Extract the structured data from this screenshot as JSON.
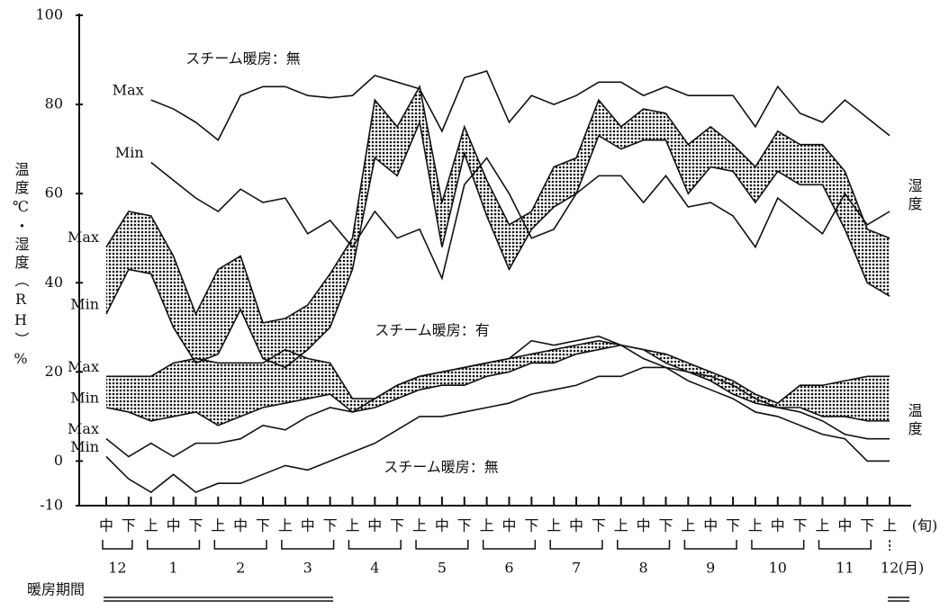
{
  "chart_data": {
    "type": "line",
    "y_label": "温度℃・湿度（RH）%",
    "ylim": [
      -10,
      100
    ],
    "yticks": [
      -10,
      0,
      20,
      40,
      60,
      80,
      100
    ],
    "categories": [
      "中",
      "下",
      "上",
      "中",
      "下",
      "上",
      "中",
      "下",
      "上",
      "中",
      "下",
      "上",
      "中",
      "下",
      "上",
      "中",
      "下",
      "上",
      "中",
      "下",
      "上",
      "中",
      "下",
      "上",
      "中",
      "下",
      "上",
      "中",
      "下",
      "上",
      "中",
      "下",
      "上",
      "中",
      "下",
      "上"
    ],
    "period_unit": "(旬)",
    "months": [
      "12",
      "1",
      "2",
      "3",
      "4",
      "5",
      "6",
      "7",
      "8",
      "9",
      "10",
      "11",
      "12"
    ],
    "month_unit": "(月)",
    "heating_label": "暖房期間",
    "annotations": [
      "スチーム暖房：無",
      "スチーム暖房：有",
      "スチーム暖房：無",
      "湿度",
      "温度"
    ],
    "color": "#111111",
    "series": [
      {
        "name": "Max",
        "fill": "none",
        "values": [
          null,
          null,
          81,
          79,
          76,
          72,
          82,
          84,
          84,
          82,
          81.5,
          82,
          86.5,
          85,
          83.5,
          74,
          86,
          87.5,
          76,
          82,
          80,
          82,
          85,
          85,
          82,
          84,
          82,
          82,
          82,
          75,
          84,
          78,
          76,
          81,
          77,
          73
        ]
      },
      {
        "name": "Min",
        "fill": "none",
        "values": [
          null,
          null,
          67,
          63,
          59,
          56,
          61,
          58,
          59,
          51,
          54,
          48,
          56,
          50,
          52,
          41,
          62,
          68,
          60,
          50,
          52,
          60,
          64,
          64,
          58,
          64,
          57,
          58,
          55,
          48,
          59,
          55,
          51,
          60,
          53,
          56
        ]
      },
      {
        "name": "Max",
        "fill": "dots",
        "values": [
          48,
          56,
          55,
          46,
          33,
          43,
          46,
          31,
          32,
          35,
          42,
          50,
          81,
          75,
          84,
          58,
          75,
          63,
          53,
          56,
          66,
          68,
          81,
          75,
          79,
          78,
          71,
          75,
          71,
          66,
          74,
          71,
          71,
          65,
          52,
          50
        ]
      },
      {
        "name": "Min",
        "fill": "dots",
        "values": [
          33,
          43,
          42,
          30,
          22,
          24,
          34,
          23,
          21,
          25,
          30,
          43,
          68,
          64,
          76,
          48,
          69,
          55,
          43,
          52,
          57,
          60,
          73,
          70,
          72,
          72,
          60,
          66,
          65,
          58,
          65,
          62,
          62,
          52,
          40,
          37
        ]
      },
      {
        "name": "Max",
        "fill": "dots",
        "values": [
          19,
          19,
          19,
          22,
          23,
          22,
          22,
          22,
          25,
          23,
          22,
          14,
          14,
          17,
          19,
          20,
          21,
          22,
          23,
          24,
          25,
          26,
          27,
          26,
          25,
          24,
          22,
          20,
          18,
          15,
          13,
          17,
          17,
          18,
          19,
          19
        ]
      },
      {
        "name": "Min",
        "fill": "dots",
        "values": [
          12,
          11,
          9,
          10,
          11,
          8,
          10,
          12,
          13,
          14,
          15,
          11,
          12,
          14,
          16,
          17,
          17,
          19,
          20,
          22,
          22,
          24,
          25,
          26,
          25,
          22,
          20,
          18,
          15,
          13,
          12,
          12,
          10,
          10,
          9,
          9
        ]
      },
      {
        "name": "Max",
        "fill": "none",
        "values": [
          5,
          1,
          4,
          1,
          4,
          4,
          5,
          8,
          7,
          10,
          12,
          11,
          14,
          17,
          19,
          20,
          21,
          22,
          23,
          27,
          26,
          27,
          28,
          26,
          23,
          21,
          20,
          19,
          17,
          14,
          12,
          11,
          9,
          6,
          5,
          5
        ]
      },
      {
        "name": "Min",
        "fill": "none",
        "values": [
          1,
          -4,
          -7,
          -3,
          -7,
          -5,
          -5,
          -3,
          -1,
          -2,
          0,
          2,
          4,
          7,
          10,
          10,
          11,
          12,
          13,
          15,
          16,
          17,
          19,
          19,
          21,
          21,
          18,
          16,
          14,
          11,
          10,
          8,
          6,
          5,
          0,
          0
        ]
      }
    ]
  }
}
